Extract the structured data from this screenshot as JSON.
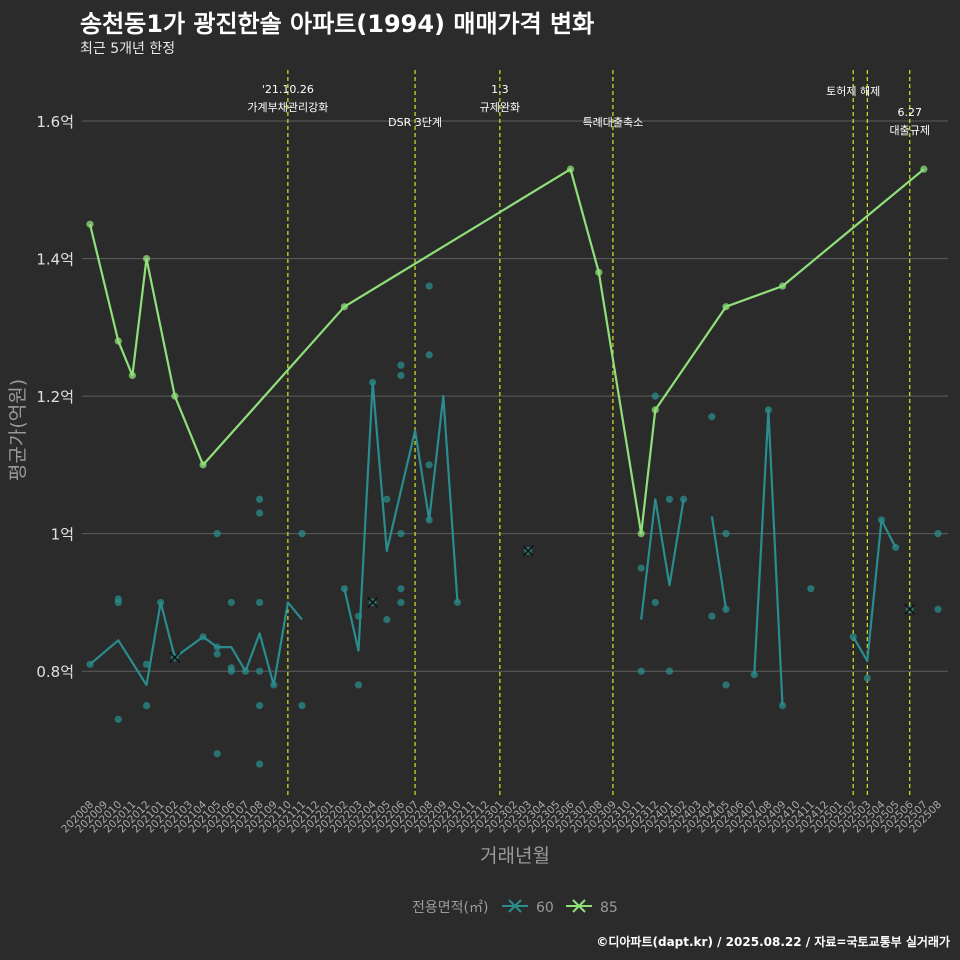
{
  "title": "송천동1가 광진한솔 아파트(1994) 매매가격 변화",
  "subtitle": "최근 5개년 한정",
  "caption": "©디아파트(dapt.kr) / 2025.08.22 / 자료=국토교통부 실거래가",
  "colors": {
    "background": "#2b2b2b",
    "grid": "#5e5e5e",
    "series_60": "#2a8c8c",
    "series_85": "#8fe07a",
    "event_line": "#d4e81e",
    "axis_text": "#aaaaaa"
  },
  "chart_data": {
    "type": "line",
    "xlabel": "거래년월",
    "ylabel": "평균가(억원)",
    "ylim": [
      0.62,
      1.68
    ],
    "yticks": [
      {
        "value": 0.8,
        "label": "0.8억"
      },
      {
        "value": 1.0,
        "label": "1억"
      },
      {
        "value": 1.2,
        "label": "1.2억"
      },
      {
        "value": 1.4,
        "label": "1.4억"
      },
      {
        "value": 1.6,
        "label": "1.6억"
      }
    ],
    "x_categories": [
      "202008",
      "202009",
      "202010",
      "202011",
      "202012",
      "202101",
      "202102",
      "202103",
      "202104",
      "202105",
      "202106",
      "202107",
      "202108",
      "202109",
      "202110",
      "202111",
      "202112",
      "202201",
      "202202",
      "202203",
      "202204",
      "202205",
      "202206",
      "202207",
      "202208",
      "202209",
      "202210",
      "202211",
      "202212",
      "202301",
      "202302",
      "202303",
      "202304",
      "202305",
      "202306",
      "202307",
      "202308",
      "202309",
      "202310",
      "202311",
      "202312",
      "202401",
      "202402",
      "202403",
      "202404",
      "202405",
      "202406",
      "202407",
      "202408",
      "202409",
      "202410",
      "202411",
      "202412",
      "202501",
      "202502",
      "202503",
      "202504",
      "202505",
      "202506",
      "202507",
      "202508"
    ],
    "legend_title": "전용면적(㎡)",
    "legend_position": "bottom",
    "series": [
      {
        "name": "60",
        "line": [
          [
            "202008",
            0.81
          ],
          [
            "202010",
            0.845
          ],
          [
            "202012",
            0.78
          ],
          [
            "202101",
            0.9
          ],
          [
            "202102",
            0.82
          ],
          [
            "202104",
            0.85
          ],
          [
            "202105",
            0.835
          ],
          [
            "202106",
            0.835
          ],
          [
            "202107",
            0.8
          ],
          [
            "202108",
            0.855
          ],
          [
            "202109",
            0.78
          ],
          [
            "202110",
            0.9
          ],
          [
            "202111",
            0.875
          ],
          null,
          [
            "202202",
            0.92
          ],
          [
            "202203",
            0.83
          ],
          [
            "202204",
            1.22
          ],
          [
            "202205",
            0.975
          ],
          [
            "202207",
            1.15
          ],
          [
            "202208",
            1.02
          ],
          [
            "202209",
            1.2
          ],
          [
            "202210",
            0.9
          ],
          null,
          [
            "202311",
            0.875
          ],
          [
            "202312",
            1.05
          ],
          [
            "202401",
            0.925
          ],
          [
            "202402",
            1.05
          ],
          null,
          [
            "202404",
            1.025
          ],
          [
            "202405",
            0.89
          ],
          null,
          [
            "202407",
            0.795
          ],
          [
            "202408",
            1.18
          ],
          [
            "202409",
            0.75
          ],
          null,
          [
            "202502",
            0.85
          ],
          [
            "202503",
            0.815
          ],
          [
            "202504",
            1.02
          ],
          [
            "202505",
            0.98
          ]
        ],
        "points": [
          [
            "202008",
            0.81
          ],
          [
            "202010",
            0.73
          ],
          [
            "202010",
            0.9
          ],
          [
            "202010",
            0.905
          ],
          [
            "202012",
            0.75
          ],
          [
            "202012",
            0.81
          ],
          [
            "202101",
            0.9
          ],
          [
            "202104",
            0.85
          ],
          [
            "202105",
            0.68
          ],
          [
            "202105",
            0.825
          ],
          [
            "202105",
            0.835
          ],
          [
            "202105",
            1.0
          ],
          [
            "202106",
            0.8
          ],
          [
            "202106",
            0.805
          ],
          [
            "202106",
            0.9
          ],
          [
            "202107",
            0.8
          ],
          [
            "202108",
            0.665
          ],
          [
            "202108",
            0.75
          ],
          [
            "202108",
            0.8
          ],
          [
            "202108",
            0.9
          ],
          [
            "202108",
            1.03
          ],
          [
            "202108",
            1.05
          ],
          [
            "202109",
            0.78
          ],
          [
            "202111",
            0.75
          ],
          [
            "202111",
            1.0
          ],
          [
            "202202",
            0.92
          ],
          [
            "202203",
            0.78
          ],
          [
            "202203",
            0.88
          ],
          [
            "202204",
            1.22
          ],
          [
            "202205",
            0.875
          ],
          [
            "202205",
            1.05
          ],
          [
            "202206",
            0.9
          ],
          [
            "202206",
            0.92
          ],
          [
            "202206",
            1.0
          ],
          [
            "202206",
            1.23
          ],
          [
            "202206",
            1.245
          ],
          [
            "202208",
            1.26
          ],
          [
            "202208",
            1.36
          ],
          [
            "202208",
            1.1
          ],
          [
            "202208",
            1.02
          ],
          [
            "202210",
            0.9
          ],
          [
            "202311",
            0.8
          ],
          [
            "202311",
            0.95
          ],
          [
            "202312",
            0.9
          ],
          [
            "202312",
            1.2
          ],
          [
            "202401",
            0.8
          ],
          [
            "202401",
            1.05
          ],
          [
            "202402",
            1.05
          ],
          [
            "202404",
            0.88
          ],
          [
            "202404",
            1.17
          ],
          [
            "202405",
            0.78
          ],
          [
            "202405",
            0.89
          ],
          [
            "202405",
            1.0
          ],
          [
            "202407",
            0.795
          ],
          [
            "202408",
            1.18
          ],
          [
            "202409",
            0.75
          ],
          [
            "202411",
            0.92
          ],
          [
            "202502",
            0.85
          ],
          [
            "202503",
            0.79
          ],
          [
            "202504",
            1.02
          ],
          [
            "202505",
            0.98
          ],
          [
            "202508",
            0.89
          ],
          [
            "202508",
            1.0
          ]
        ],
        "x_marks": [
          [
            "202102",
            0.82
          ],
          [
            "202204",
            0.9
          ],
          [
            "202303",
            0.975
          ],
          [
            "202506",
            0.89
          ]
        ]
      },
      {
        "name": "85",
        "line": [
          [
            "202008",
            1.45
          ],
          [
            "202010",
            1.28
          ],
          [
            "202011",
            1.23
          ],
          [
            "202012",
            1.4
          ],
          [
            "202102",
            1.2
          ],
          [
            "202104",
            1.1
          ],
          [
            "202202",
            1.33
          ],
          [
            "202306",
            1.53
          ],
          [
            "202308",
            1.38
          ],
          [
            "202311",
            1.0
          ],
          [
            "202312",
            1.18
          ],
          [
            "202405",
            1.33
          ],
          [
            "202409",
            1.36
          ],
          [
            "202507",
            1.53
          ]
        ],
        "points": [
          [
            "202008",
            1.45
          ],
          [
            "202010",
            1.28
          ],
          [
            "202011",
            1.23
          ],
          [
            "202012",
            1.4
          ],
          [
            "202102",
            1.2
          ],
          [
            "202104",
            1.1
          ],
          [
            "202202",
            1.33
          ],
          [
            "202306",
            1.53
          ],
          [
            "202308",
            1.38
          ],
          [
            "202311",
            1.0
          ],
          [
            "202312",
            1.18
          ],
          [
            "202405",
            1.33
          ],
          [
            "202409",
            1.36
          ],
          [
            "202507",
            1.53
          ]
        ],
        "x_marks": []
      }
    ],
    "annotations": [
      {
        "x": "202110",
        "lines": [
          "'21.10.26",
          "가계부채관리강화"
        ],
        "level": 0
      },
      {
        "x": "202207",
        "lines": [
          "DSR 3단계"
        ],
        "level": 1
      },
      {
        "x": "202301",
        "lines": [
          "1.3",
          "규제완화"
        ],
        "level": 0
      },
      {
        "x": "202309",
        "lines": [
          "특례대출축소"
        ],
        "level": 1
      },
      {
        "x": "202502",
        "lines": [
          "토허제 해제"
        ],
        "level": 0
      },
      {
        "x": "202503",
        "lines": [],
        "level": 0
      },
      {
        "x": "202506",
        "lines": [
          "6.27",
          "대출규제"
        ],
        "level": 2
      }
    ]
  }
}
